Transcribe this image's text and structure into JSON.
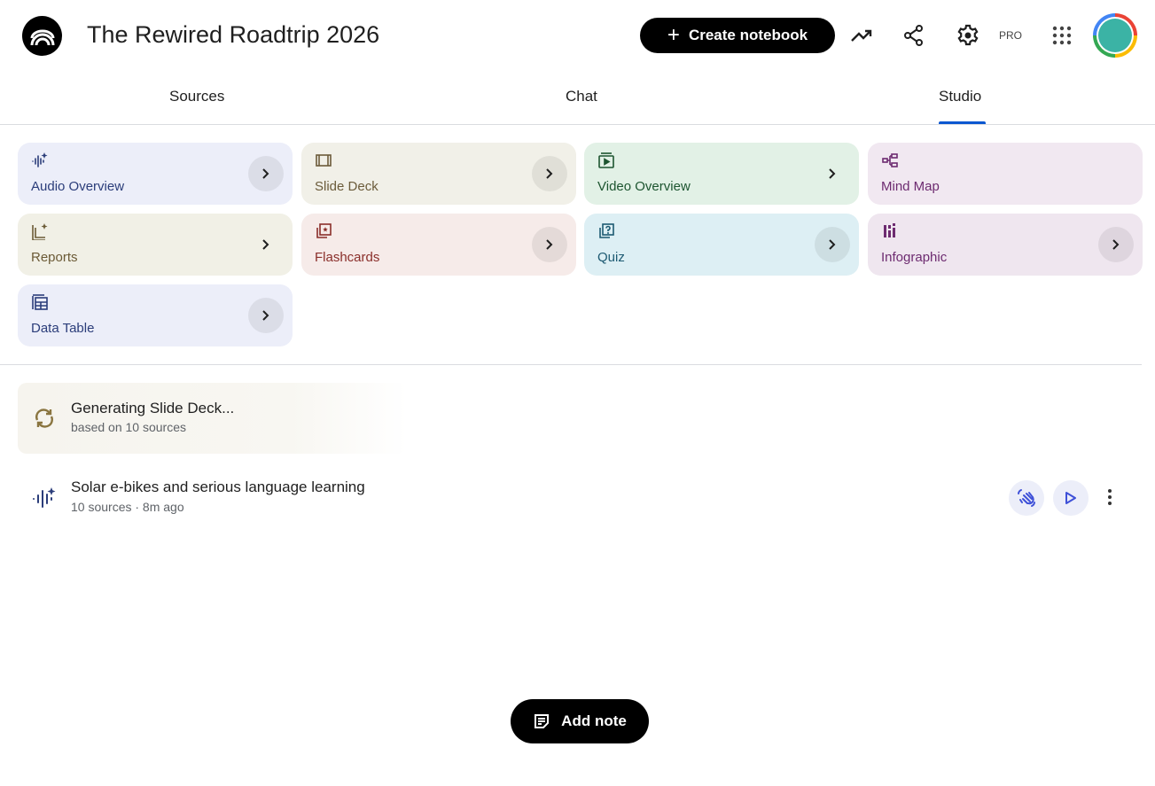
{
  "header": {
    "title": "The Rewired Roadtrip 2026",
    "create_label": "Create notebook",
    "pro_label": "PRO"
  },
  "tabs": [
    {
      "label": "Sources"
    },
    {
      "label": "Chat"
    },
    {
      "label": "Studio",
      "active": true
    }
  ],
  "studio_tools": [
    {
      "label": "Audio Overview",
      "icon": "audio-waveform-sparkle-icon",
      "bg": "#eceef9",
      "fg": "#2b3d7a"
    },
    {
      "label": "Slide Deck",
      "icon": "slides-icon",
      "bg": "#f1f0e8",
      "fg": "#6b5b3a"
    },
    {
      "label": "Video Overview",
      "icon": "video-icon",
      "bg": "#e2f1e6",
      "fg": "#1d5530"
    },
    {
      "label": "Mind Map",
      "icon": "mind-map-icon",
      "bg": "#f1e8f1",
      "fg": "#6d2b70"
    },
    {
      "label": "Reports",
      "icon": "report-sparkle-icon",
      "bg": "#f1f0e6",
      "fg": "#6b5a36"
    },
    {
      "label": "Flashcards",
      "icon": "flashcards-icon",
      "bg": "#f6ebe9",
      "fg": "#8a2e2a"
    },
    {
      "label": "Quiz",
      "icon": "quiz-icon",
      "bg": "#ddeff4",
      "fg": "#1d5a72"
    },
    {
      "label": "Infographic",
      "icon": "infographic-icon",
      "bg": "#efe6ef",
      "fg": "#6d2b70"
    },
    {
      "label": "Data Table",
      "icon": "table-icon",
      "bg": "#eceef9",
      "fg": "#2b3d7a"
    }
  ],
  "generating": {
    "title": "Generating Slide Deck...",
    "subtitle": "based on 10 sources"
  },
  "items": [
    {
      "title": "Solar e-bikes and serious language learning",
      "meta": "10 sources · 8m ago"
    }
  ],
  "add_note_label": "Add note"
}
